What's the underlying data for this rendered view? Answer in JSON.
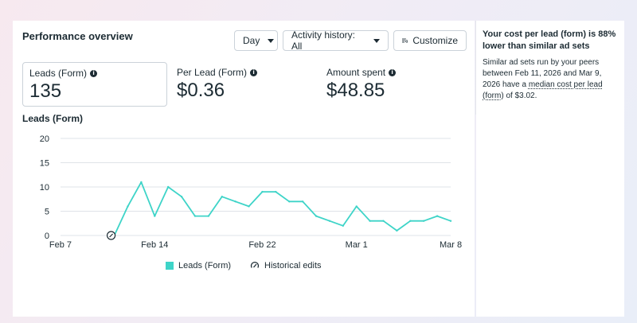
{
  "header": {
    "title": "Performance overview",
    "day_label": "Day",
    "activity_label": "Activity history: All",
    "customize_label": "Customize"
  },
  "metrics": [
    {
      "label": "Leads (Form)",
      "value": "135"
    },
    {
      "label": "Per Lead (Form)",
      "value": "$0.36"
    },
    {
      "label": "Amount spent",
      "value": "$48.85"
    }
  ],
  "chart_title": "Leads (Form)",
  "legend": {
    "series_label": "Leads (Form)",
    "edits_label": "Historical edits"
  },
  "side": {
    "title": "Your cost per lead (form) is 88% lower than similar ad sets",
    "body_prefix": "Similar ad sets run by your peers between Feb 11, 2026 and Mar 9, 2026 have a ",
    "body_link": "median cost per lead (form)",
    "body_suffix": " of $3.02."
  },
  "colors": {
    "line": "#3ed4c8",
    "grid": "#dfe3e8",
    "text": "#1c2b33"
  },
  "chart_data": {
    "type": "line",
    "title": "Leads (Form)",
    "xlabel": "",
    "ylabel": "",
    "x_ticks": [
      "Feb 7",
      "Feb 14",
      "Feb 22",
      "Mar 1",
      "Mar 8"
    ],
    "x_tick_positions_days": [
      0,
      7,
      15,
      22,
      29
    ],
    "y_ticks": [
      0,
      5,
      10,
      15,
      20
    ],
    "ylim": [
      0,
      20
    ],
    "xlim_days": [
      0,
      29
    ],
    "series": [
      {
        "name": "Leads (Form)",
        "x_days": [
          4,
          5,
          6,
          7,
          8,
          9,
          10,
          11,
          12,
          13,
          14,
          15,
          16,
          17,
          18,
          19,
          20,
          21,
          22,
          23,
          24,
          25,
          26,
          27,
          28,
          29
        ],
        "values": [
          0,
          6,
          11,
          4,
          10,
          8,
          4,
          4,
          8,
          7,
          6,
          9,
          9,
          7,
          7,
          4,
          3,
          2,
          6,
          3,
          3,
          1,
          3,
          3,
          4,
          3
        ]
      }
    ],
    "historical_edit_days": [
      4
    ],
    "grid": true,
    "legend_position": "bottom"
  }
}
